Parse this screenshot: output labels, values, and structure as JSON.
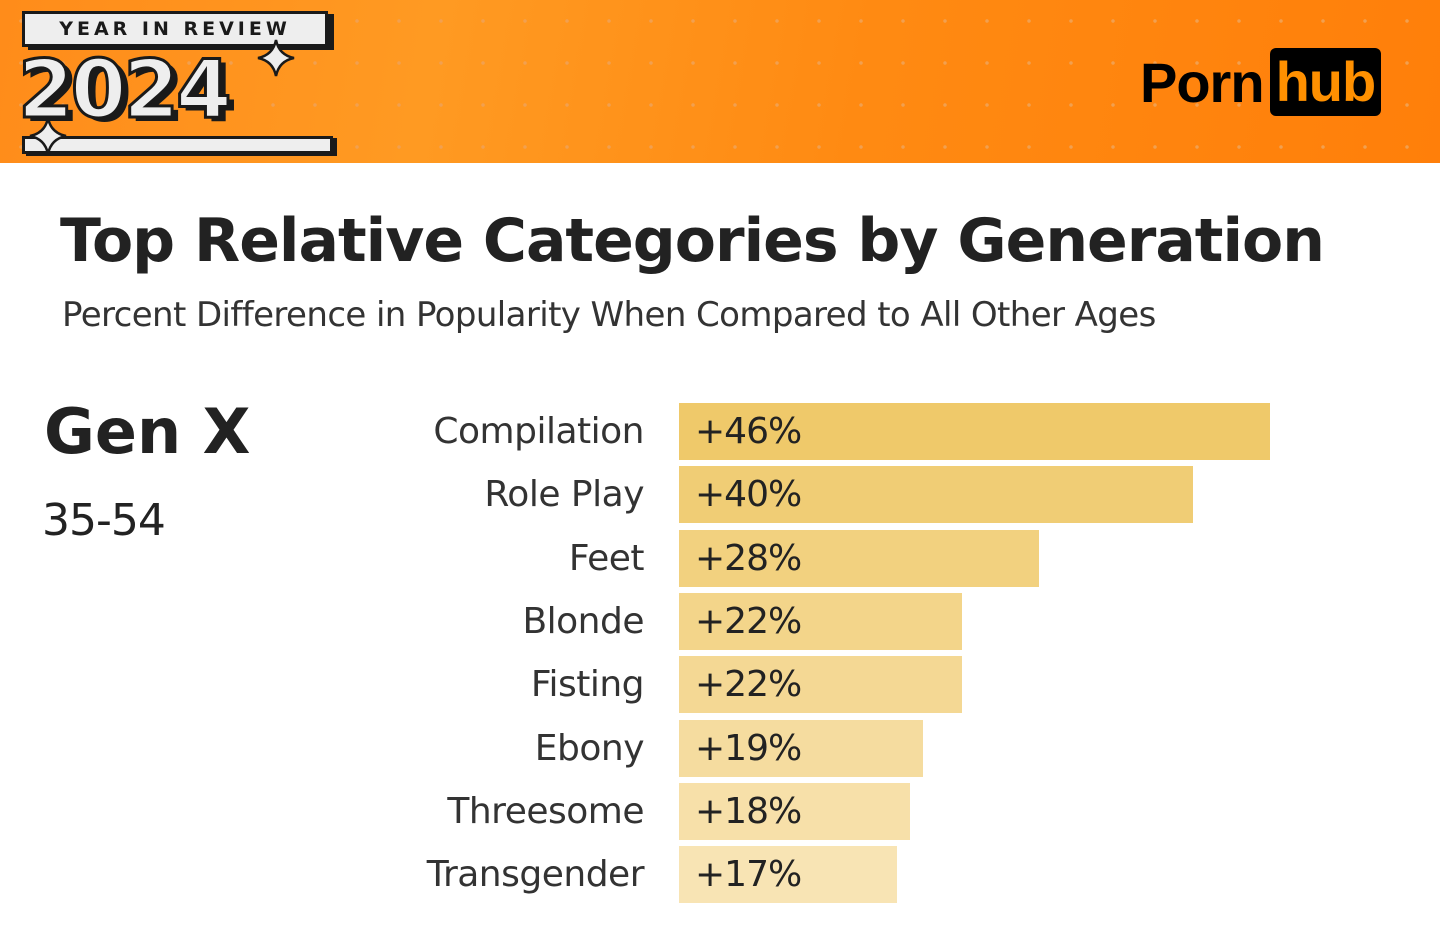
{
  "header": {
    "badge_line1": "YEAR IN REVIEW",
    "badge_year": "2024",
    "logo_part1": "Porn",
    "logo_part2": "hub",
    "icons": [
      "sparkle-star-icon",
      "sparkle-star-icon"
    ],
    "brand_color": "#ff9000"
  },
  "title": "Top Relative Categories by Generation",
  "subtitle": "Percent Difference in Popularity When Compared to All Other Ages",
  "generation": {
    "name": "Gen X",
    "age_range": "35-54"
  },
  "chart_data": {
    "type": "bar",
    "orientation": "horizontal",
    "title": "Top Relative Categories by Generation",
    "subtitle": "Percent Difference in Popularity When Compared to All Other Ages",
    "categories": [
      "Compilation",
      "Role Play",
      "Feet",
      "Blonde",
      "Fisting",
      "Ebony",
      "Threesome",
      "Transgender"
    ],
    "values": [
      46,
      40,
      28,
      22,
      22,
      19,
      18,
      17
    ],
    "labels": [
      "+46%",
      "+40%",
      "+28%",
      "+22%",
      "+22%",
      "+19%",
      "+18%",
      "+17%"
    ],
    "unit": "%",
    "grid": false,
    "colors": {
      "top": "#efc96a",
      "bottom": "#f8e4b4"
    }
  }
}
